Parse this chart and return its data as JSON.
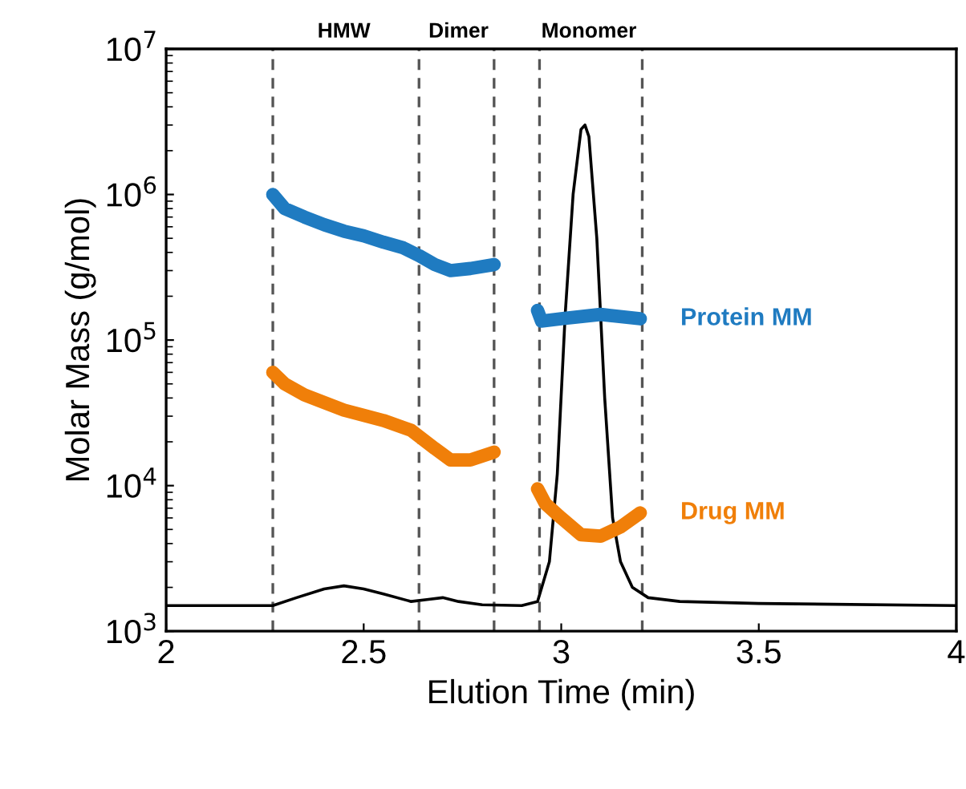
{
  "chart_data": {
    "type": "line",
    "xlabel": "Elution Time (min)",
    "ylabel": "Molar Mass (g/mol)",
    "log": "y",
    "xlim": [
      2,
      4
    ],
    "xticks": [
      2,
      2.5,
      3,
      3.5,
      4
    ],
    "ylim": [
      1000,
      10000000
    ],
    "yticks": [
      {
        "value": 1000,
        "label": "10$^{3}$"
      },
      {
        "value": 10000,
        "label": "10$^{4}$"
      },
      {
        "value": 100000,
        "label": "10$^{5}$"
      },
      {
        "value": 1000000,
        "label": "10$^{6}$"
      },
      {
        "value": 10000000,
        "label": "10$^{7}$"
      }
    ],
    "grid": false,
    "legend": false,
    "marker": "none",
    "series": [
      {
        "color": "#000000",
        "x": [
          2.0,
          2.27,
          2.33,
          2.4,
          2.45,
          2.5,
          2.55,
          2.62,
          2.66,
          2.7,
          2.74,
          2.8,
          2.9,
          2.94,
          2.97,
          2.99,
          3.01,
          3.03,
          3.05,
          3.06,
          3.07,
          3.09,
          3.11,
          3.13,
          3.15,
          3.18,
          3.22,
          3.3,
          3.5,
          4.0
        ],
        "values": [
          1500,
          1500,
          1700,
          1950,
          2050,
          1950,
          1800,
          1600,
          1650,
          1700,
          1600,
          1520,
          1500,
          1600,
          3000,
          12000,
          150000,
          1000000,
          2800000,
          3000000,
          2500000,
          500000,
          40000,
          6000,
          3000,
          2000,
          1700,
          1600,
          1550,
          1500
        ]
      },
      {
        "name": "Protein MM",
        "color": "#1f7bc1",
        "x": [
          2.27,
          2.3,
          2.35,
          2.4,
          2.45,
          2.5,
          2.55,
          2.6,
          2.64,
          2.68,
          2.72,
          2.77,
          2.83,
          2.88,
          2.94,
          2.95,
          3.0,
          3.1,
          3.2
        ],
        "values": [
          1000000,
          800000,
          700000,
          620000,
          560000,
          520000,
          470000,
          430000,
          380000,
          330000,
          300000,
          310000,
          330000,
          null,
          160000,
          135000,
          140000,
          150000,
          140000
        ]
      },
      {
        "name": "Drug MM",
        "color": "#f07f09",
        "x": [
          2.27,
          2.3,
          2.35,
          2.45,
          2.55,
          2.62,
          2.68,
          2.72,
          2.77,
          2.83,
          2.88,
          2.94,
          2.96,
          3.0,
          3.05,
          3.1,
          3.15,
          3.2
        ],
        "values": [
          60000,
          50000,
          42000,
          33000,
          28000,
          24000,
          18000,
          15000,
          15000,
          17000,
          null,
          9500,
          7500,
          6000,
          4600,
          4500,
          5200,
          6500
        ]
      }
    ],
    "ref_lines": [
      {
        "axis": "x",
        "value": 2.27,
        "line_style": "dashed",
        "color": "#555555"
      },
      {
        "axis": "x",
        "value": 2.64,
        "line_style": "dashed",
        "color": "#555555"
      },
      {
        "axis": "x",
        "value": 2.83,
        "line_style": "dashed",
        "color": "#555555"
      },
      {
        "axis": "x",
        "value": 2.945,
        "line_style": "dashed",
        "color": "#555555"
      },
      {
        "axis": "x",
        "value": 3.205,
        "line_style": "dashed",
        "color": "#555555"
      }
    ],
    "annotations": [
      "HMW",
      "Dimer",
      "Monomer"
    ]
  }
}
